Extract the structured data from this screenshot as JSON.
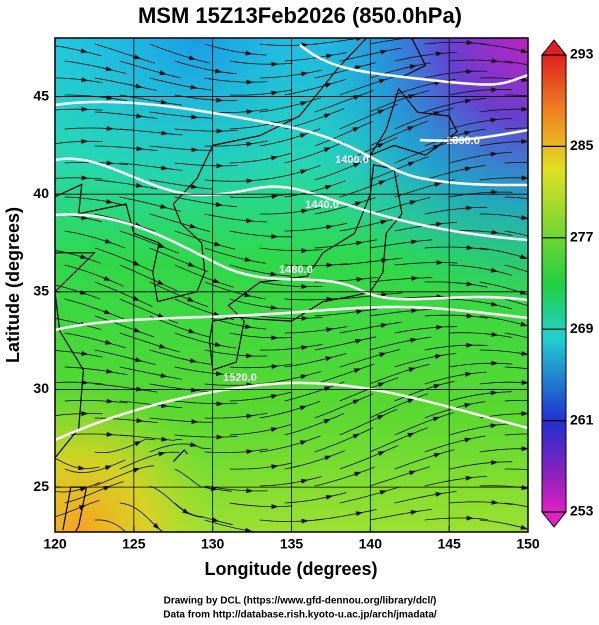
{
  "chart_data": {
    "type": "map",
    "title": "MSM 15Z13Feb2026 (850.0hPa)",
    "x_label": "Longitude (degrees)",
    "y_label": "Latitude  (degrees)",
    "xlim": [
      120,
      150
    ],
    "ylim": [
      22.7,
      48.0
    ],
    "xticks": [
      120,
      125,
      130,
      135,
      140,
      145,
      150
    ],
    "yticks": [
      25,
      30,
      35,
      40,
      45
    ],
    "grid": true,
    "colorbar": {
      "lim": [
        253,
        293
      ],
      "ticks": [
        253,
        261,
        269,
        277,
        285,
        293
      ]
    },
    "contour_labels": [
      "1360.0",
      "1400.0",
      "1440.0",
      "1480.0",
      "1520.0"
    ],
    "credits": [
      "Drawing by DCL (https://www.gfd-dennou.org/library/dcl/)",
      "Data from http://database.rish.kyoto-u.ac.jp/arch/jmadata/"
    ]
  }
}
